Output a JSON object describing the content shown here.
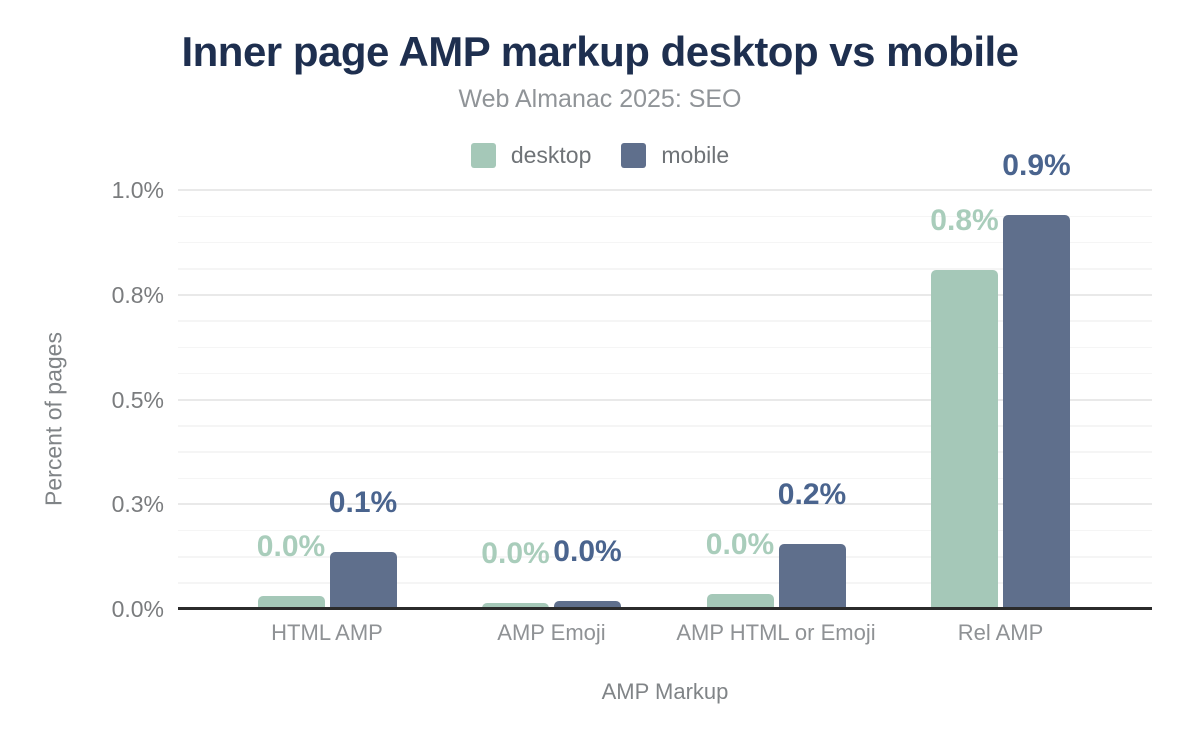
{
  "title": "Inner page AMP markup desktop vs mobile",
  "subtitle": "Web Almanac 2025: SEO",
  "colors": {
    "title": "#1e2f4f",
    "desktop_bar": "#a5c8b8",
    "mobile_bar": "#5f6f8c",
    "desktop_label": "#a9cdbb",
    "mobile_label": "#4a648e",
    "grid_major": "#e9e9e9",
    "grid_minor": "#f5f5f5",
    "axis_line": "#2b2b2b"
  },
  "chart_data": {
    "type": "bar",
    "title": "Inner page AMP markup desktop vs mobile",
    "subtitle": "Web Almanac 2025: SEO",
    "categories": [
      "HTML AMP",
      "AMP Emoji",
      "AMP HTML or Emoji",
      "Rel AMP"
    ],
    "series": [
      {
        "name": "desktop",
        "color": "#a5c8b8",
        "label_color": "#a9cdbb",
        "values": [
          0.03,
          0.015,
          0.035,
          0.81
        ],
        "labels": [
          "0.0%",
          "0.0%",
          "0.0%",
          "0.8%"
        ]
      },
      {
        "name": "mobile",
        "color": "#5f6f8c",
        "label_color": "#4a648e",
        "values": [
          0.135,
          0.02,
          0.155,
          0.94
        ],
        "labels": [
          "0.1%",
          "0.0%",
          "0.2%",
          "0.9%"
        ]
      }
    ],
    "xlabel": "AMP Markup",
    "ylabel": "Percent of pages",
    "ylim": [
      0,
      1.0
    ],
    "yticks": [
      {
        "value": 0.0,
        "label": "0.0%"
      },
      {
        "value": 0.25,
        "label": "0.3%"
      },
      {
        "value": 0.5,
        "label": "0.5%"
      },
      {
        "value": 0.75,
        "label": "0.8%"
      },
      {
        "value": 1.0,
        "label": "1.0%"
      }
    ],
    "grid": "horizontal major at labeled ticks, minor every 0.0625",
    "legend_position": "top-center",
    "value_unit": "percent"
  }
}
